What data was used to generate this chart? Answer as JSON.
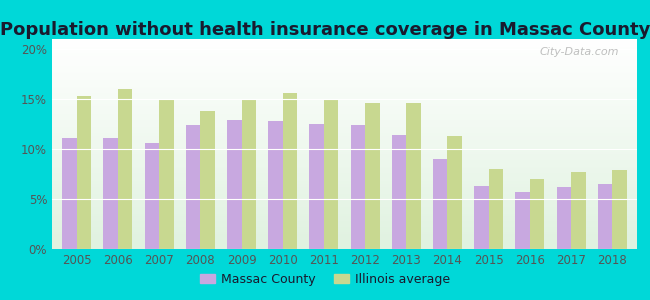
{
  "title": "Population without health insurance coverage in Massac County",
  "years": [
    2005,
    2006,
    2007,
    2008,
    2009,
    2010,
    2011,
    2012,
    2013,
    2014,
    2015,
    2016,
    2017,
    2018
  ],
  "massac_county": [
    11.1,
    11.1,
    10.6,
    12.4,
    12.9,
    12.8,
    12.5,
    12.4,
    11.4,
    9.0,
    6.3,
    5.7,
    6.2,
    6.5
  ],
  "illinois_avg": [
    15.3,
    16.0,
    15.0,
    13.8,
    15.0,
    15.6,
    14.9,
    14.6,
    14.6,
    11.3,
    8.0,
    7.0,
    7.7,
    7.9
  ],
  "massac_color": "#c8a8e0",
  "illinois_color": "#c8d890",
  "background_outer": "#00d8d8",
  "background_plot_top": "#f0fff0",
  "background_plot_bottom": "#e0f0e0",
  "ylim": [
    0,
    21
  ],
  "yticks": [
    0,
    5,
    10,
    15,
    20
  ],
  "legend_massac": "Massac County",
  "legend_illinois": "Illinois average",
  "watermark": "City-Data.com",
  "title_fontsize": 13,
  "bar_width": 0.35,
  "tick_color": "#555555",
  "title_color": "#1a1a2e"
}
